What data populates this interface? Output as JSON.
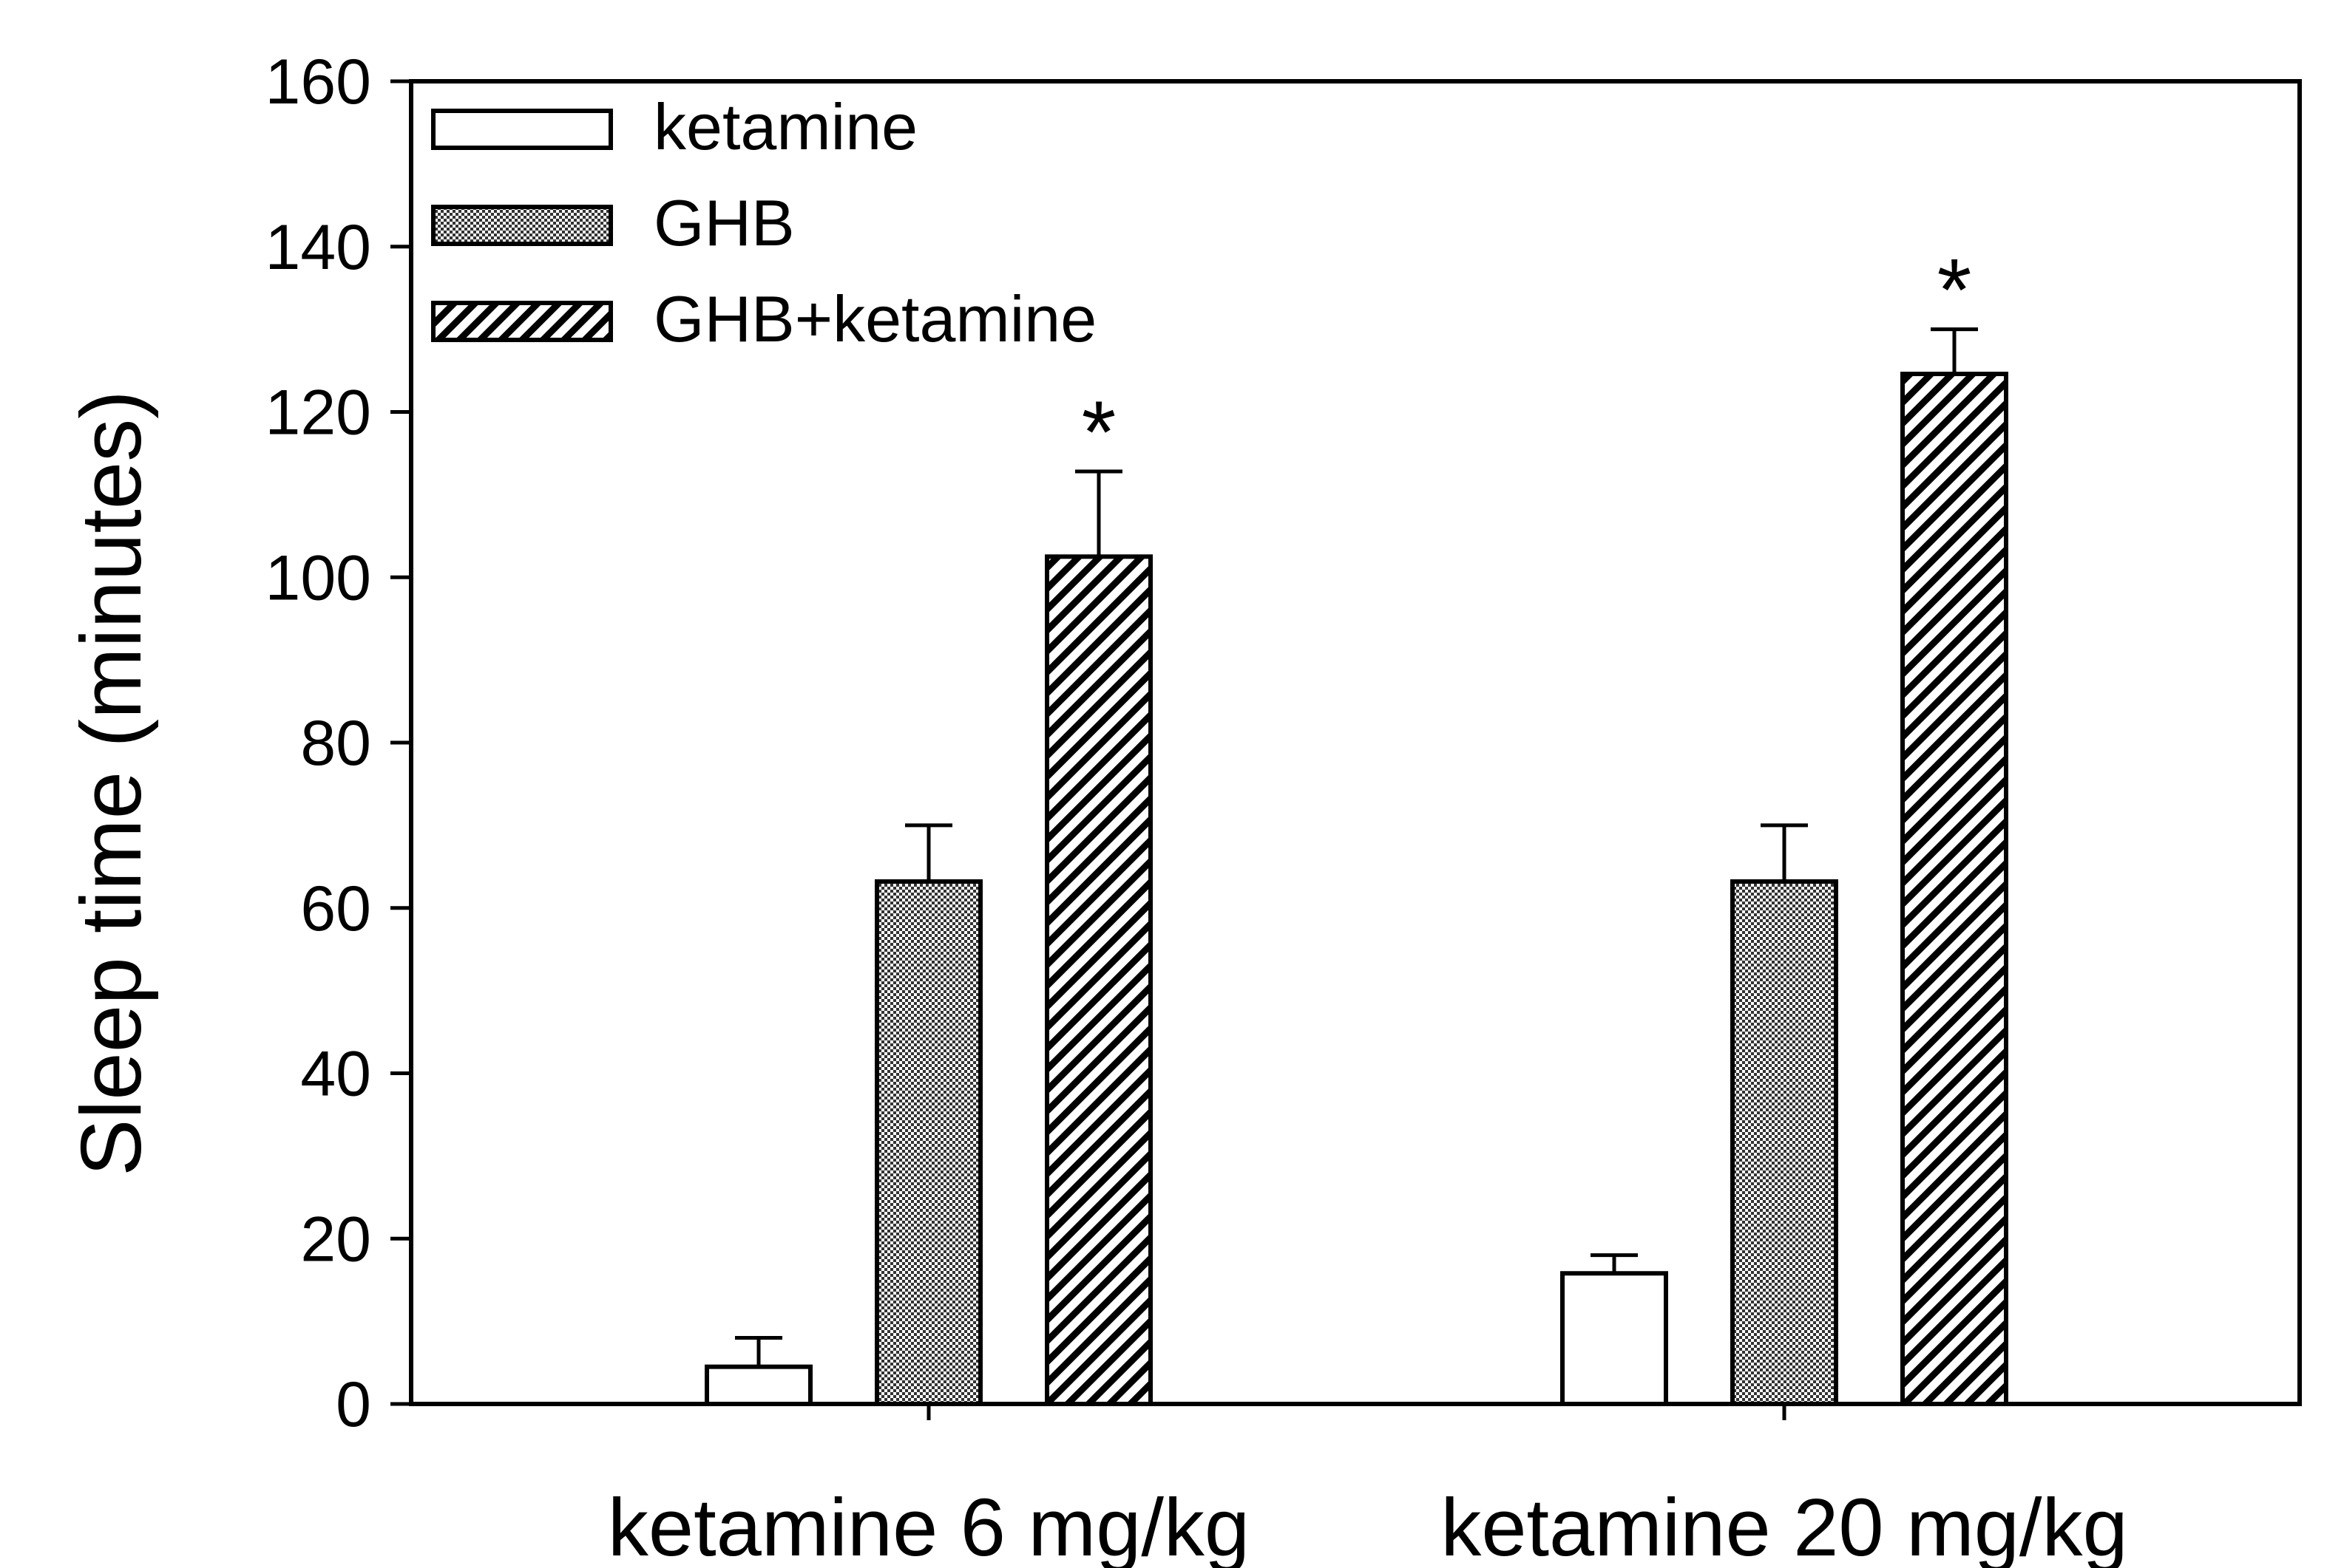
{
  "chart_data": {
    "type": "bar",
    "title": "",
    "xlabel": "",
    "ylabel": "Sleep time (minutes)",
    "ylim": [
      0,
      160
    ],
    "yticks": [
      "0",
      "20",
      "40",
      "60",
      "80",
      "100",
      "120",
      "140",
      "160"
    ],
    "categories": [
      "ketamine 6 mg/kg",
      "ketamine 20 mg/kg"
    ],
    "series": [
      {
        "name": "ketamine",
        "fill": "white",
        "values": [
          4.5,
          15.8
        ],
        "errors": [
          3.5,
          2.2
        ]
      },
      {
        "name": "GHB",
        "fill": "dots",
        "values": [
          63.2,
          63.2
        ],
        "errors": [
          6.8,
          6.8
        ]
      },
      {
        "name": "GHB+ketamine",
        "fill": "hatch",
        "values": [
          102.5,
          124.6
        ],
        "errors": [
          10.3,
          5.4
        ]
      }
    ],
    "annotations": [
      {
        "text": "*",
        "category": 0,
        "series": 2
      },
      {
        "text": "*",
        "category": 1,
        "series": 2
      }
    ],
    "legend": {
      "position": "top-left",
      "items": [
        "ketamine",
        "GHB",
        "GHB+ketamine"
      ]
    },
    "grid": false
  }
}
